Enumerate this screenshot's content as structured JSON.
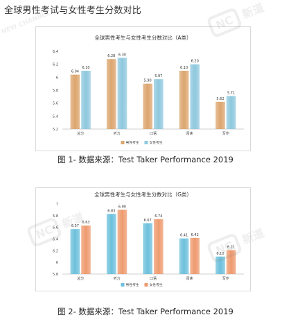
{
  "page": {
    "title": "全球男性考试与女性考生分数对比"
  },
  "captions": {
    "a": "图 1- 数据来源：Test Taker Performance 2019",
    "b": "图 2- 数据来源：Test Taker Performance 2019"
  },
  "watermark": {
    "logo": "NC",
    "cn": "新道",
    "en": "NEW CHANNEL"
  },
  "colors": {
    "male_a": "#dca56e",
    "female_a": "#8ec8de",
    "male_b": "#6cc0dc",
    "female_b": "#ee9a6e",
    "axis": "#bfbfbf",
    "label": "#444444"
  },
  "chart_data": [
    {
      "type": "bar",
      "title": "全球男性考生与女性考生分数对比（A类）",
      "categories": [
        "总分",
        "听力",
        "口语",
        "阅读",
        "写作"
      ],
      "ylim": [
        5.2,
        6.4
      ],
      "yticks": [
        "5.2",
        "5.4",
        "5.6",
        "5.8",
        "6",
        "6.2",
        "6.4"
      ],
      "ytick_values": [
        5.2,
        5.4,
        5.6,
        5.8,
        6.0,
        6.2,
        6.4
      ],
      "series": [
        {
          "name": "男性考生",
          "values": [
            6.04,
            6.28,
            5.9,
            6.1,
            5.62
          ],
          "labels": [
            "6.04",
            "6.28",
            "5.90",
            "6.10",
            "5.62"
          ]
        },
        {
          "name": "女性考生",
          "values": [
            6.1,
            6.3,
            5.97,
            6.2,
            5.71
          ],
          "labels": [
            "6.10",
            "6.30",
            "5.97",
            "6.20",
            "5.71"
          ]
        }
      ],
      "grid": false,
      "legend": "bottom"
    },
    {
      "type": "bar",
      "title": "全球男性考生与女性考生分数对比（G类）",
      "categories": [
        "总分",
        "听力",
        "口语",
        "阅读",
        "写作"
      ],
      "ylim": [
        5.8,
        7.0
      ],
      "yticks": [
        "5.8",
        "6",
        "6.2",
        "6.4",
        "6.6",
        "6.8",
        "7"
      ],
      "ytick_values": [
        5.8,
        6.0,
        6.2,
        6.4,
        6.6,
        6.8,
        7.0
      ],
      "series": [
        {
          "name": "男性考生",
          "values": [
            6.57,
            6.83,
            6.67,
            6.41,
            6.1
          ],
          "labels": [
            "6.57",
            "6.83",
            "6.67",
            "6.41",
            "6.10"
          ]
        },
        {
          "name": "女性考生",
          "values": [
            6.63,
            6.9,
            6.74,
            6.42,
            6.21
          ],
          "labels": [
            "6.63",
            "6.90",
            "6.74",
            "6.42",
            "6.21"
          ]
        }
      ],
      "grid": false,
      "legend": "bottom"
    }
  ]
}
